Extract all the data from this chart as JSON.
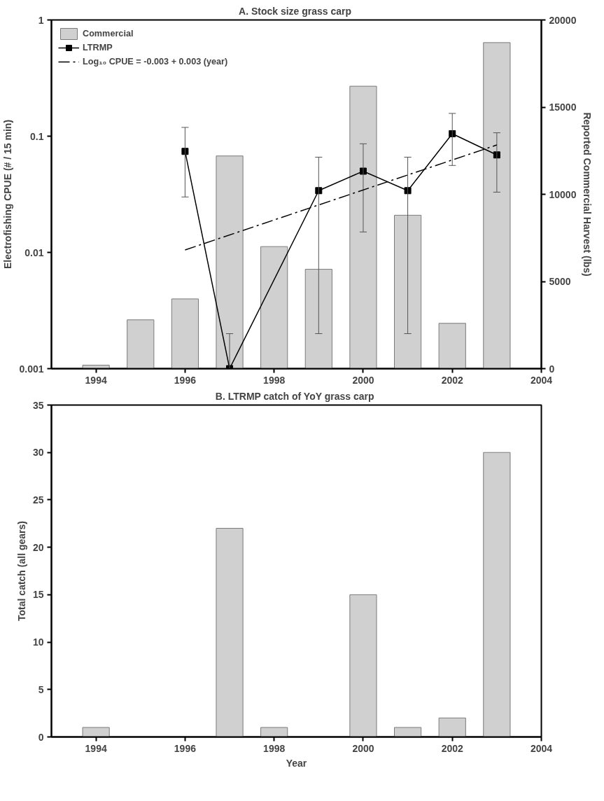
{
  "chart_data": [
    {
      "type": "line",
      "title": "A.  Stock size grass carp",
      "xlabel": null,
      "ylabel": "Electrofishing CPUE (# / 15 min)",
      "y2label": "Reported Commercial Harvest (lbs)",
      "xlim": [
        1993,
        2004
      ],
      "xticks": [
        1994,
        1996,
        1998,
        2000,
        2002,
        2004
      ],
      "log": "y",
      "ylim": [
        0.001,
        1
      ],
      "yticks": [
        0.001,
        0.01,
        0.1,
        1
      ],
      "y2lim": [
        0,
        20000
      ],
      "y2ticks": [
        0,
        5000,
        10000,
        15000,
        20000
      ],
      "grid": false,
      "legend": "top left",
      "series": [
        {
          "name": "Commercial",
          "type": "bar",
          "axis": "y2",
          "color": "#d0d0d0",
          "x": [
            1994,
            1995,
            1996,
            1997,
            1998,
            1999,
            2000,
            2001,
            2002,
            2003
          ],
          "values": [
            200,
            2800,
            4000,
            12200,
            7000,
            5700,
            16200,
            8800,
            2600,
            18700
          ]
        },
        {
          "name": "LTRMP",
          "type": "line",
          "color": "#000000",
          "marker": "square",
          "line_style": "solid",
          "x": [
            1996,
            1997,
            1999,
            2000,
            2001,
            2002,
            2003
          ],
          "values": [
            0.074,
            0.001,
            0.034,
            0.05,
            0.034,
            0.105,
            0.069
          ],
          "errors": [
            [
              0.03,
              0.119
            ],
            [
              0.001,
              0.002
            ],
            [
              0.002,
              0.066
            ],
            [
              0.015,
              0.086
            ],
            [
              0.002,
              0.066
            ],
            [
              0.056,
              0.157
            ],
            [
              0.033,
              0.107
            ]
          ]
        },
        {
          "name": "Log₁₀ CPUE = -0.003 + 0.003 (year)",
          "type": "line",
          "color": "#000000",
          "marker": "none",
          "line_style": "dashed",
          "x": [
            1996,
            2003
          ],
          "values": [
            0.0105,
            0.084
          ]
        }
      ]
    },
    {
      "type": "bar",
      "title": "B.  LTRMP catch of YoY grass carp",
      "xlabel": "Year",
      "ylabel": "Total catch (all gears)",
      "xlim": [
        1993,
        2004
      ],
      "xticks": [
        1994,
        1996,
        1998,
        2000,
        2002,
        2004
      ],
      "ylim": [
        0,
        35
      ],
      "yticks": [
        0,
        5,
        10,
        15,
        20,
        25,
        30,
        35
      ],
      "grid": false,
      "legend": false,
      "color": "#d0d0d0",
      "x": [
        1994,
        1997,
        1998,
        2000,
        2001,
        2002,
        2003
      ],
      "values": [
        1,
        22,
        1,
        15,
        1,
        2,
        30
      ]
    }
  ]
}
